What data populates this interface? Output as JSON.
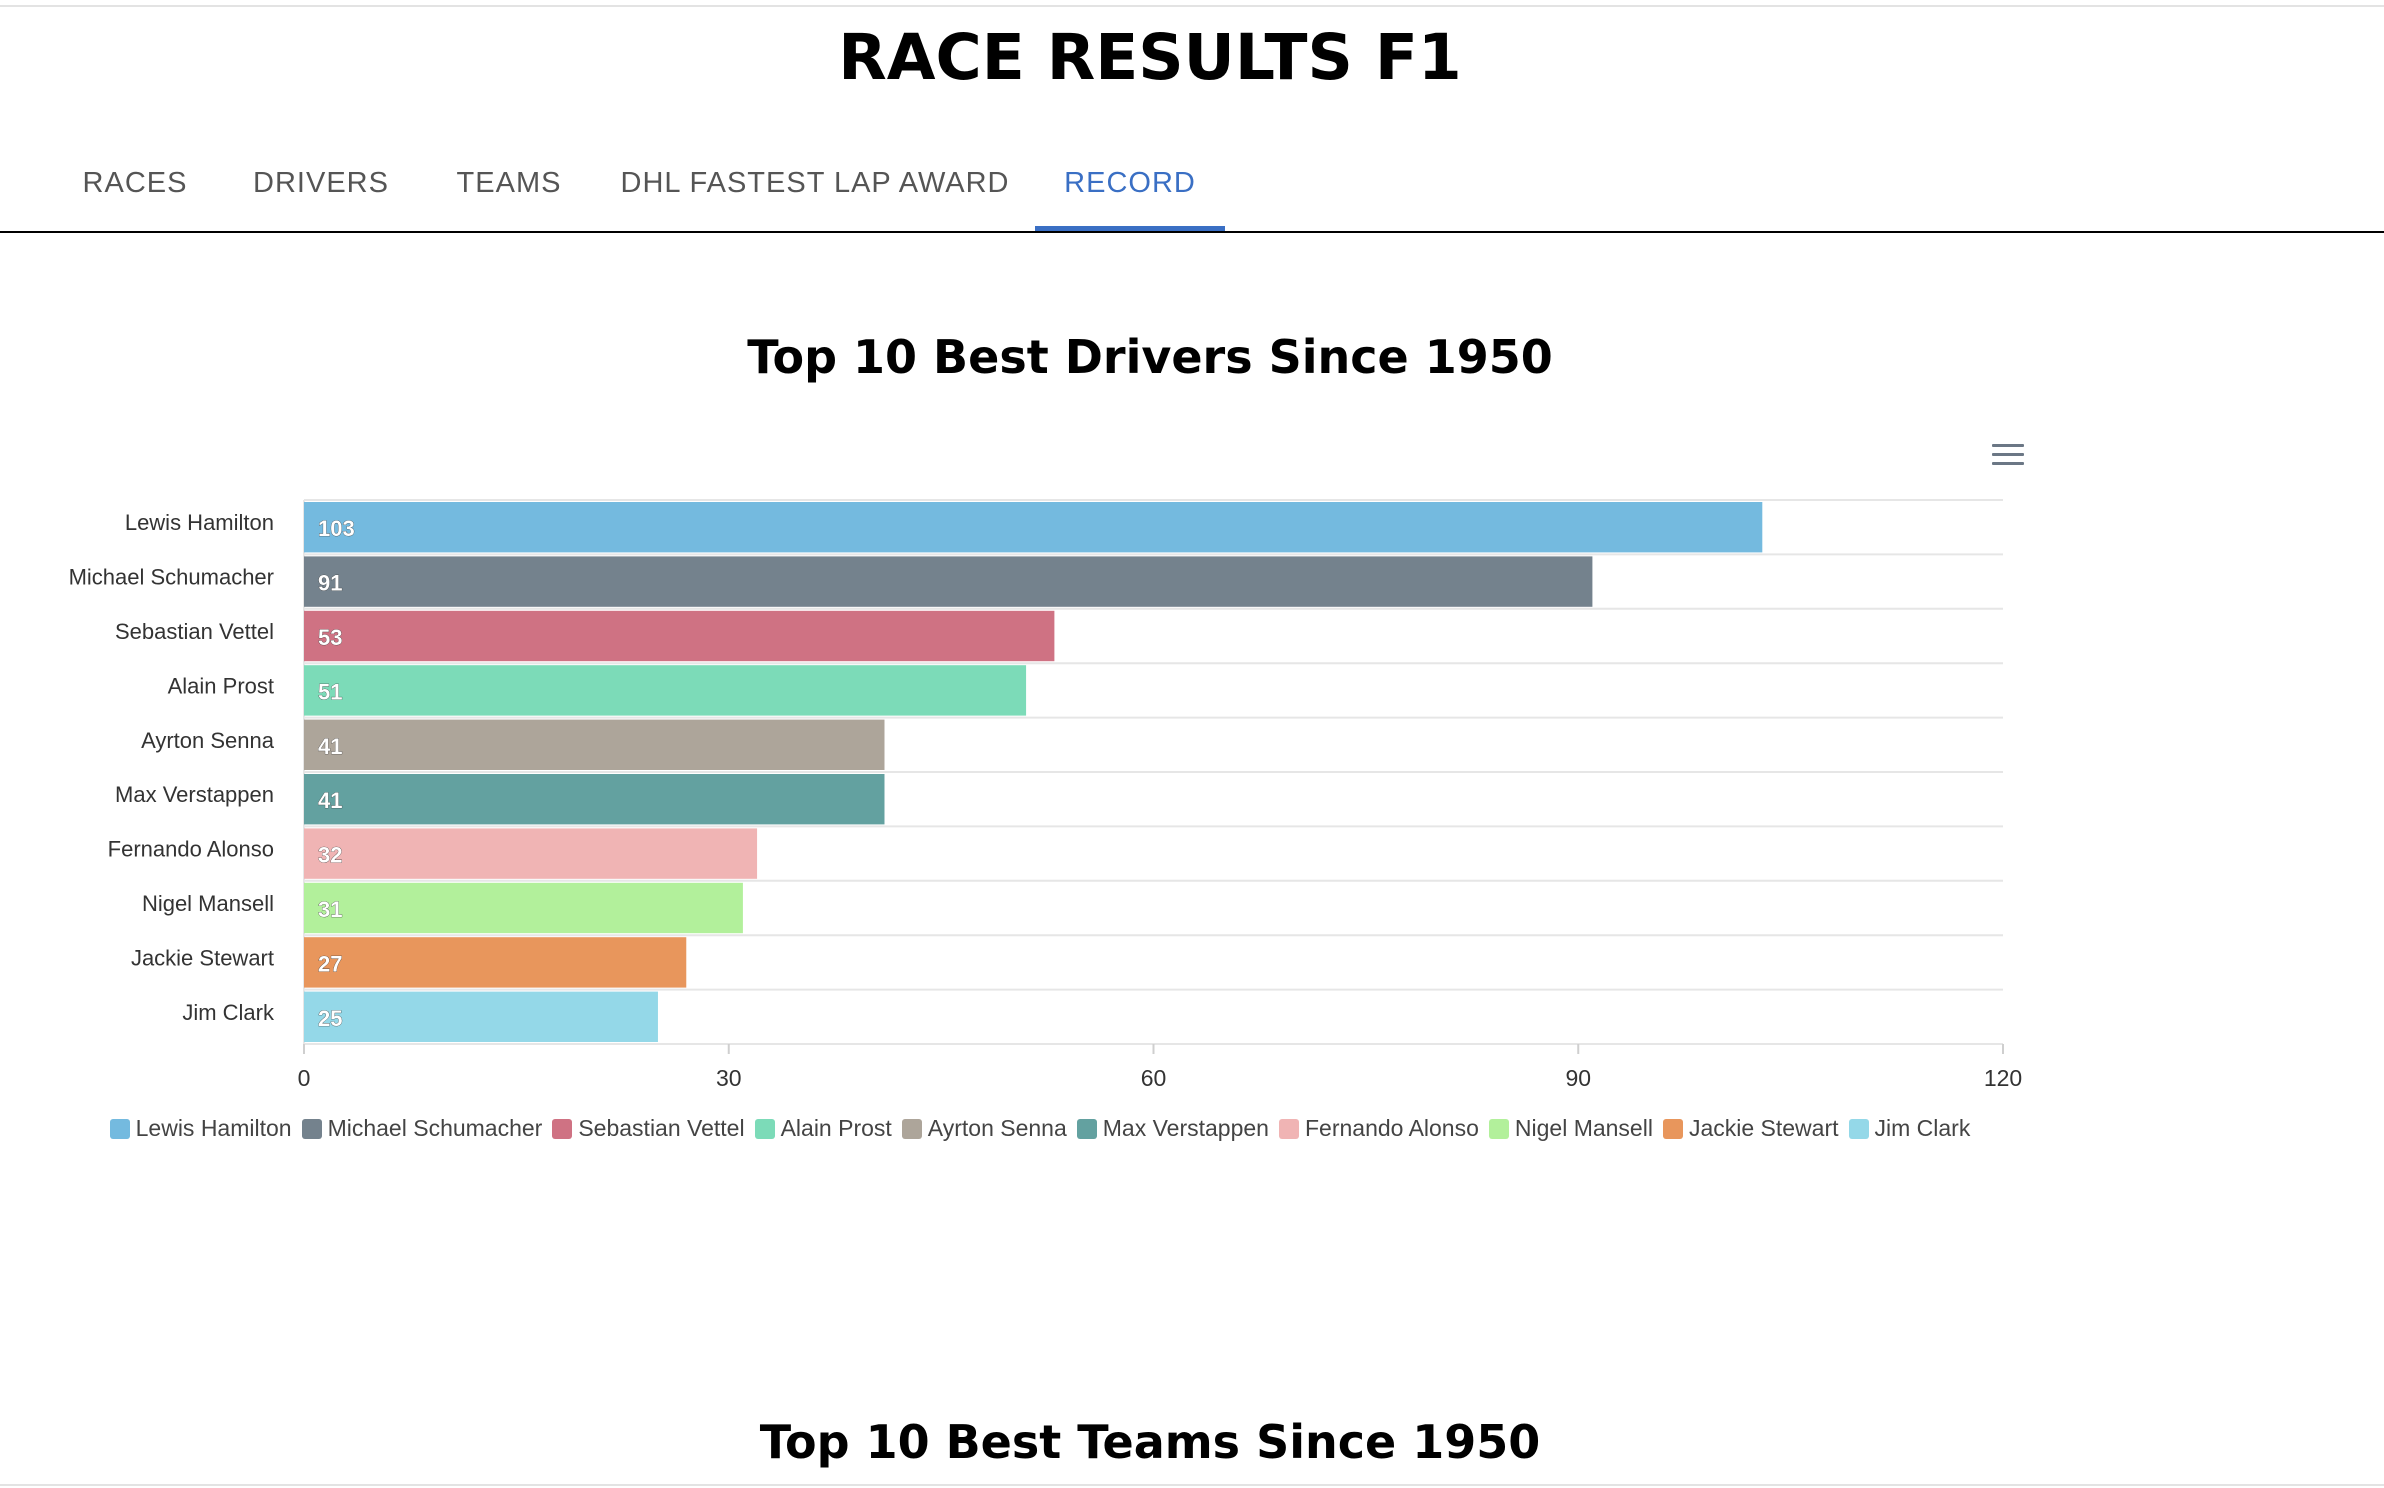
{
  "header": {
    "title": "RACE RESULTS F1"
  },
  "tabs": [
    {
      "label": "RACES",
      "active": false
    },
    {
      "label": "DRIVERS",
      "active": false
    },
    {
      "label": "TEAMS",
      "active": false
    },
    {
      "label": "DHL FASTEST LAP AWARD",
      "active": false
    },
    {
      "label": "RECORD",
      "active": true
    }
  ],
  "accent_color": "#3a6fc4",
  "sections": {
    "drivers_title": "Top 10 Best Drivers Since 1950",
    "teams_title": "Top 10 Best Teams Since 1950"
  },
  "chart_menu": {
    "icon": "hamburger-menu-icon"
  },
  "chart_data": {
    "type": "bar",
    "orientation": "horizontal",
    "title": "Top 10 Best Drivers Since 1950",
    "xlabel": "",
    "ylabel": "",
    "categories": [
      "Lewis Hamilton",
      "Michael Schumacher",
      "Sebastian Vettel",
      "Alain Prost",
      "Ayrton Senna",
      "Max Verstappen",
      "Fernando Alonso",
      "Nigel Mansell",
      "Jackie Stewart",
      "Jim Clark"
    ],
    "values": [
      103,
      91,
      53,
      51,
      41,
      41,
      32,
      31,
      27,
      25
    ],
    "colors": [
      "#74badf",
      "#74828d",
      "#cf7283",
      "#7cdbb8",
      "#ada59a",
      "#63a1a0",
      "#f0b4b4",
      "#b2f09b",
      "#e8965c",
      "#94d8e8"
    ],
    "xlim": [
      0,
      120
    ],
    "xticks": [
      0,
      30,
      60,
      90,
      120
    ],
    "grid": true,
    "data_labels": true,
    "legend": {
      "placement": "bottom",
      "entries": [
        "Lewis Hamilton",
        "Michael Schumacher",
        "Sebastian Vettel",
        "Alain Prost",
        "Ayrton Senna",
        "Max Verstappen",
        "Fernando Alonso",
        "Nigel Mansell",
        "Jackie Stewart",
        "Jim Clark"
      ]
    }
  }
}
